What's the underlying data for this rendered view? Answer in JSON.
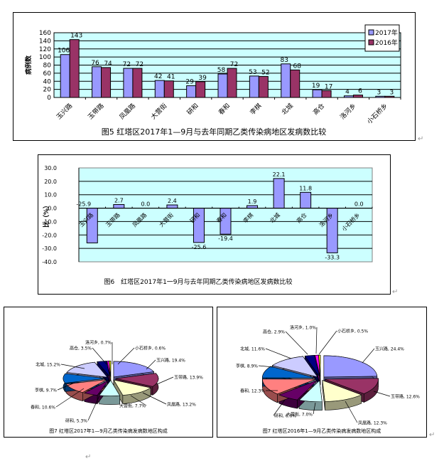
{
  "chart_data": [
    {
      "type": "bar",
      "title": "图5 红塔区2017年1—9月与去年同期乙类传染病地区发病数比较",
      "xlabel": "",
      "ylabel": "病例数",
      "ylim": [
        0,
        160
      ],
      "yticks": [
        0,
        20,
        40,
        60,
        80,
        100,
        120,
        140,
        160
      ],
      "grid": true,
      "legend_position": "top-right",
      "categories": [
        "玉兴路",
        "玉带路",
        "凤凰路",
        "大营街",
        "研和",
        "春和",
        "李棋",
        "北城",
        "高仓",
        "洛河乡",
        "小石桥乡"
      ],
      "series": [
        {
          "name": "2017年",
          "color": "#9999ff",
          "values": [
            106,
            76,
            72,
            42,
            29,
            58,
            53,
            83,
            19,
            4,
            3
          ]
        },
        {
          "name": "2016年",
          "color": "#993366",
          "values": [
            143,
            74,
            72,
            41,
            39,
            72,
            52,
            68,
            17,
            6,
            3
          ]
        }
      ]
    },
    {
      "type": "bar",
      "title": "图6 红塔区2017年1一9月与去年同期乙类传染病地区发病数比较",
      "xlabel": "",
      "ylabel": "比（%）",
      "ylim": [
        -40,
        30
      ],
      "yticks": [
        "30.0",
        "20.0",
        "10.0",
        "0.0",
        "-10.0",
        "-20.0",
        "-30.0",
        "-40.0"
      ],
      "grid": true,
      "categories": [
        "玉兴路",
        "玉带路",
        "凤凰路",
        "大营街",
        "研和",
        "春和",
        "李棋",
        "北城",
        "高仓",
        "洛河乡",
        "小石桥乡"
      ],
      "series": [
        {
          "name": "增减比",
          "color": "#9999ff",
          "values": [
            -25.9,
            2.7,
            0.0,
            2.4,
            -25.6,
            -19.4,
            1.9,
            22.1,
            11.8,
            -33.3,
            0.0
          ]
        }
      ]
    },
    {
      "type": "pie",
      "title": "图7 红塔区2017年1—9月乙类传染病发病数地区构成",
      "slices": [
        {
          "label": "玉兴路",
          "value": 19.4,
          "color": "#9999ff"
        },
        {
          "label": "玉带路",
          "value": 13.9,
          "color": "#993366"
        },
        {
          "label": "凤凰路",
          "value": 13.2,
          "color": "#ffffcc"
        },
        {
          "label": "大营街",
          "value": 7.7,
          "color": "#ccffff"
        },
        {
          "label": "研和",
          "value": 5.3,
          "color": "#660066"
        },
        {
          "label": "春和",
          "value": 10.6,
          "color": "#ff8080"
        },
        {
          "label": "李棋",
          "value": 9.7,
          "color": "#0066cc"
        },
        {
          "label": "北城",
          "value": 15.2,
          "color": "#ccccff"
        },
        {
          "label": "高仓",
          "value": 3.5,
          "color": "#000080"
        },
        {
          "label": "洛河乡",
          "value": 0.7,
          "color": "#ff00ff"
        },
        {
          "label": "小石桥乡",
          "value": 0.6,
          "color": "#ffff00"
        }
      ]
    },
    {
      "type": "pie",
      "title": "图7 红塔区2016年1—9月乙类传染病发病数地区构成",
      "slices": [
        {
          "label": "玉兴路",
          "value": 24.4,
          "color": "#9999ff"
        },
        {
          "label": "玉带路",
          "value": 12.6,
          "color": "#993366"
        },
        {
          "label": "凤凰路",
          "value": 12.3,
          "color": "#ffffcc"
        },
        {
          "label": "大营街",
          "value": 7.0,
          "color": "#ccffff"
        },
        {
          "label": "研和",
          "value": 6.6,
          "color": "#660066"
        },
        {
          "label": "春和",
          "value": 12.3,
          "color": "#ff8080"
        },
        {
          "label": "李棋",
          "value": 8.9,
          "color": "#0066cc"
        },
        {
          "label": "北城",
          "value": 11.6,
          "color": "#ccccff"
        },
        {
          "label": "高仓",
          "value": 2.9,
          "color": "#000080"
        },
        {
          "label": "洛河乡",
          "value": 1.0,
          "color": "#ff00ff"
        },
        {
          "label": "小石桥乡",
          "value": 0.5,
          "color": "#ffff00"
        }
      ]
    }
  ],
  "fig5": {
    "title": "图5 红塔区2017年1—9月与去年同期乙类传染病地区发病数比较",
    "ylabel": "病例数",
    "legend": [
      "2017年",
      "2016年"
    ]
  },
  "fig6": {
    "title": "图6　红塔区2017年1一9月与去年同期乙类传染病地区发病数比较",
    "ylabel": "比（%）"
  },
  "fig7a": {
    "title": "图7 红塔区2017年1—9月乙类传染病发病数地区构成",
    "labels": [
      "玉兴路, 19.4%",
      "玉带路, 13.9%",
      "凤凰路, 13.2%",
      "大营街, 7.7%",
      "研和, 5.3%",
      "春和, 10.6%",
      "李棋, 9.7%",
      "北城, 15.2%",
      "高仓, 3.5%",
      "洛河乡, 0.7%",
      "小石桥乡, 0.6%"
    ]
  },
  "fig7b": {
    "title": "图7 红塔区2016年1—9月乙类传染病发病数地区构成",
    "labels": [
      "玉兴路, 24.4%",
      "玉带路, 12.6%",
      "凤凰路, 12.3%",
      "大营街, 7.0%",
      "研和, 6.6%",
      "春和, 12.3%",
      "李棋, 8.9%",
      "北城, 11.6%",
      "高仓, 2.9%",
      "洛河乡, 1.0%",
      "小石桥乡, 0.5%"
    ]
  },
  "colors": {
    "plot_bg": "#ccffff",
    "s2017": "#9999ff",
    "s2016": "#993366"
  }
}
